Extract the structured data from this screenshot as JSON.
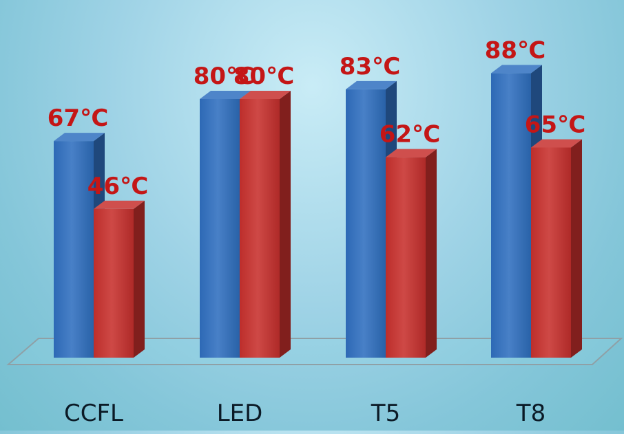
{
  "chart_data": {
    "type": "bar",
    "title": "",
    "xlabel": "",
    "ylabel": "",
    "unit": "℃",
    "categories": [
      "CCFL",
      "LED",
      "T5",
      "T8"
    ],
    "series": [
      {
        "values": [
          67,
          80,
          83,
          88
        ],
        "color": "#2f6fbf"
      },
      {
        "values": [
          46,
          80,
          62,
          65
        ],
        "color": "#c7302d"
      }
    ],
    "ylim": [
      0,
      100
    ],
    "grid": false,
    "legend": "none"
  },
  "colors": {
    "label": "#c41616",
    "category_text": "#0b1a26",
    "floor_line": "#8fa0a6"
  }
}
